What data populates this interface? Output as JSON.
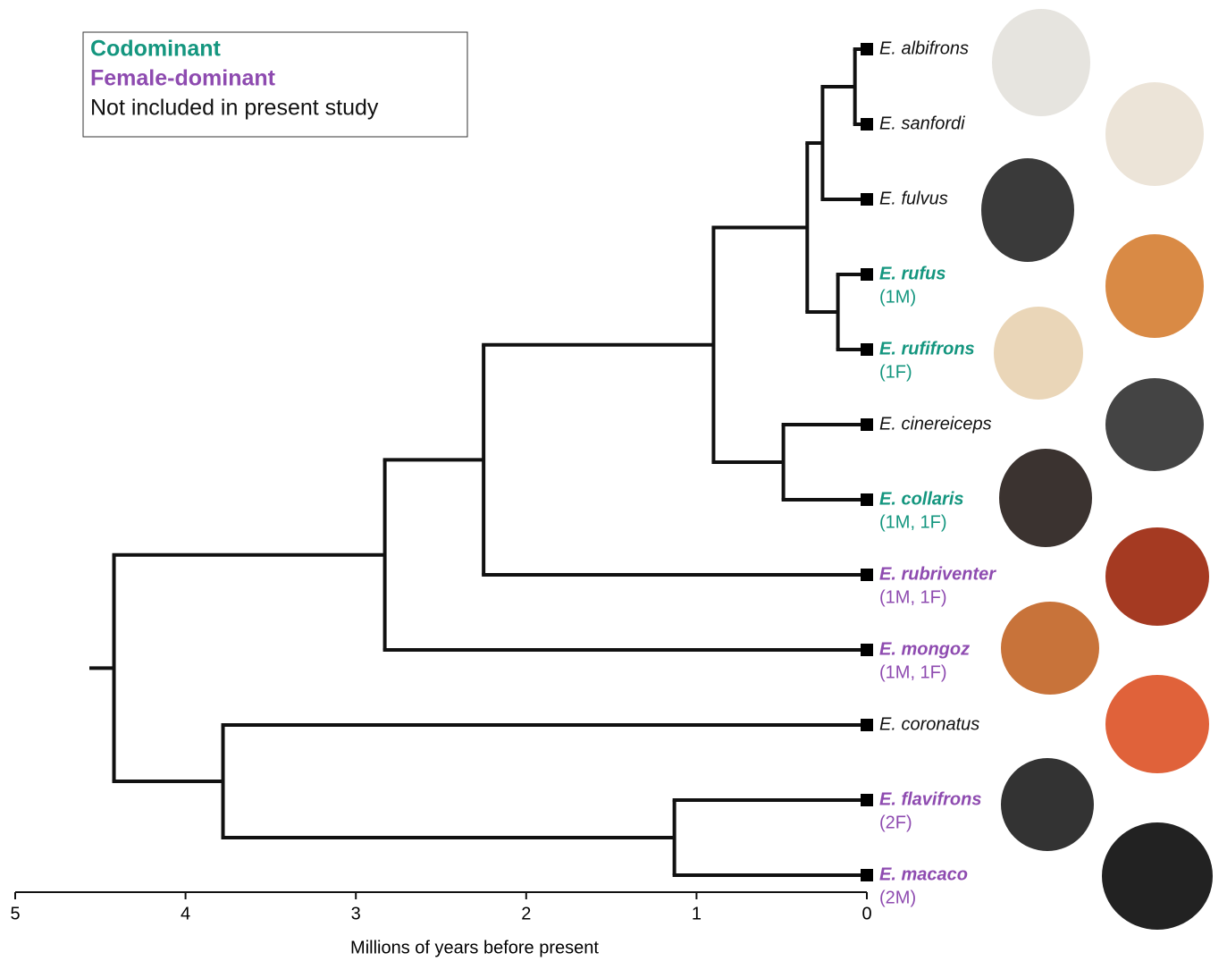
{
  "legend": [
    {
      "label": "Codominant",
      "color": "#14967f"
    },
    {
      "label": "Female-dominant",
      "color": "#8e4bb0"
    },
    {
      "label": "Not included in present study",
      "color": "#111111"
    }
  ],
  "axis": {
    "label": "Millions of years before present",
    "xlim": [
      5,
      0
    ],
    "xticks": [
      5,
      4,
      3,
      2,
      1,
      0
    ]
  },
  "tree": {
    "age": 4.42,
    "children": [
      {
        "age": 2.83,
        "children": [
          {
            "age": 2.25,
            "children": [
              {
                "age": 0.9,
                "children": [
                  {
                    "age": 0.35,
                    "children": [
                      {
                        "age": 0.26,
                        "children": [
                          {
                            "age": 0.07,
                            "children": [
                              {
                                "name": "E. albifrons",
                                "color": "#111111"
                              },
                              {
                                "name": "E. sanfordi",
                                "color": "#111111"
                              }
                            ]
                          },
                          {
                            "name": "E. fulvus",
                            "color": "#111111"
                          }
                        ]
                      },
                      {
                        "age": 0.17,
                        "children": [
                          {
                            "name": "E. rufus",
                            "sample": "(1M)",
                            "color": "#14967f"
                          },
                          {
                            "name": "E. rufifrons",
                            "sample": "(1F)",
                            "color": "#14967f"
                          }
                        ]
                      }
                    ]
                  },
                  {
                    "age": 0.49,
                    "children": [
                      {
                        "name": "E. cinereiceps",
                        "color": "#111111"
                      },
                      {
                        "name": "E. collaris",
                        "sample": "(1M, 1F)",
                        "color": "#14967f"
                      }
                    ]
                  }
                ]
              },
              {
                "name": "E. rubriventer",
                "sample": "(1M, 1F)",
                "color": "#8e4bb0"
              }
            ]
          },
          {
            "name": "E. mongoz",
            "sample": "(1M, 1F)",
            "color": "#8e4bb0"
          }
        ]
      },
      {
        "age": 3.78,
        "children": [
          {
            "name": "E. coronatus",
            "color": "#111111"
          },
          {
            "age": 1.13,
            "children": [
              {
                "name": "E. flavifrons",
                "sample": "(2F)",
                "color": "#8e4bb0"
              },
              {
                "name": "E. macaco",
                "sample": "(2M)",
                "color": "#8e4bb0"
              }
            ]
          }
        ]
      }
    ]
  }
}
